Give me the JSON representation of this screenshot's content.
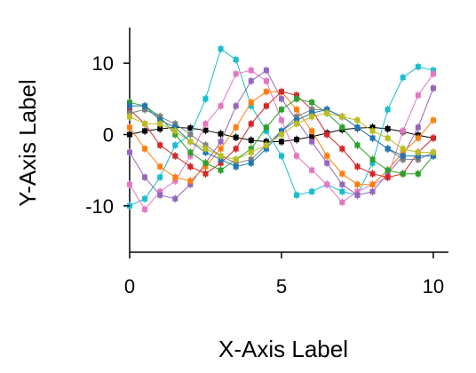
{
  "chart_data": {
    "type": "line",
    "title": "",
    "xlabel": "X-Axis Label",
    "ylabel": "Y-Axis Label",
    "xlim": [
      0,
      10.5
    ],
    "ylim": [
      -16.5,
      15
    ],
    "xticks": [
      0,
      5,
      10
    ],
    "yticks": [
      -10,
      0,
      10
    ],
    "grid": false,
    "legend": "none",
    "x": [
      0,
      0.5,
      1,
      1.5,
      2,
      2.5,
      3,
      3.5,
      4,
      4.5,
      5,
      5.5,
      6,
      6.5,
      7,
      7.5,
      8,
      8.5,
      9,
      9.5,
      10
    ],
    "series": [
      {
        "color": "#000000",
        "values": [
          0.0,
          0.5,
          0.8,
          1.0,
          0.9,
          0.6,
          0.1,
          -0.4,
          -0.8,
          -1.0,
          -1.0,
          -0.7,
          -0.3,
          0.2,
          0.7,
          0.9,
          1.0,
          0.8,
          0.4,
          -0.1,
          -0.5
        ]
      },
      {
        "color": "#17becf",
        "values": [
          -10.0,
          -9.0,
          -6.0,
          -1.5,
          0.0,
          5.0,
          12.0,
          10.5,
          4.0,
          0.5,
          -3.0,
          -8.5,
          -8.0,
          -7.0,
          -8.0,
          -8.5,
          -4.0,
          3.5,
          8.0,
          9.5,
          9.0
        ]
      },
      {
        "color": "#e377c2",
        "values": [
          -7.0,
          -10.5,
          -8.0,
          -6.5,
          -3.0,
          1.5,
          4.0,
          8.5,
          9.0,
          7.5,
          2.0,
          -3.0,
          -5.0,
          -7.0,
          -9.5,
          -8.0,
          -7.0,
          -6.0,
          0.5,
          5.5,
          8.5
        ]
      },
      {
        "color": "#9467bd",
        "values": [
          -2.5,
          -6.0,
          -8.5,
          -9.0,
          -7.0,
          -4.0,
          -1.0,
          4.0,
          7.5,
          9.0,
          5.0,
          2.0,
          -1.0,
          -4.0,
          -7.0,
          -8.5,
          -8.0,
          -5.5,
          -3.0,
          1.0,
          6.5
        ]
      },
      {
        "color": "#ff7f0e",
        "values": [
          1.0,
          -2.0,
          -4.5,
          -6.0,
          -6.5,
          -4.5,
          -2.0,
          1.0,
          4.5,
          6.0,
          6.0,
          3.5,
          0.5,
          -3.0,
          -5.5,
          -7.0,
          -7.0,
          -5.0,
          -2.5,
          -0.5,
          2.0
        ]
      },
      {
        "color": "#d62728",
        "values": [
          3.5,
          1.5,
          -1.5,
          -3.0,
          -4.5,
          -5.5,
          -4.0,
          -2.0,
          1.5,
          4.0,
          6.0,
          5.5,
          3.5,
          0.0,
          -2.0,
          -4.5,
          -5.5,
          -6.0,
          -5.5,
          -2.5,
          -0.5
        ]
      },
      {
        "color": "#2ca02c",
        "values": [
          4.5,
          4.0,
          2.5,
          0.0,
          -2.5,
          -4.0,
          -5.0,
          -3.5,
          -2.0,
          1.0,
          3.5,
          5.0,
          4.5,
          3.0,
          1.0,
          -1.5,
          -3.5,
          -5.0,
          -5.5,
          -5.5,
          -3.0
        ]
      },
      {
        "color": "#7f7f7f",
        "values": [
          3.0,
          3.5,
          2.5,
          1.5,
          0.0,
          -1.5,
          -3.0,
          -4.0,
          -3.5,
          -1.5,
          0.5,
          2.5,
          3.5,
          3.5,
          2.5,
          1.0,
          -0.5,
          -2.0,
          -3.5,
          -3.5,
          -2.5
        ]
      },
      {
        "color": "#1f77b4",
        "values": [
          4.0,
          4.0,
          2.0,
          1.0,
          -1.0,
          -2.5,
          -3.5,
          -4.5,
          -4.0,
          -2.0,
          0.5,
          2.0,
          3.0,
          3.5,
          2.5,
          1.0,
          -0.5,
          -2.0,
          -3.0,
          -3.0,
          -3.0
        ]
      },
      {
        "color": "#bcbd22",
        "values": [
          2.5,
          1.5,
          1.5,
          0.5,
          -1.0,
          -2.0,
          -3.0,
          -3.5,
          -2.5,
          -1.5,
          0.0,
          1.5,
          2.5,
          3.0,
          2.5,
          2.0,
          0.5,
          -0.5,
          -2.0,
          -2.5,
          -2.5
        ]
      }
    ]
  }
}
